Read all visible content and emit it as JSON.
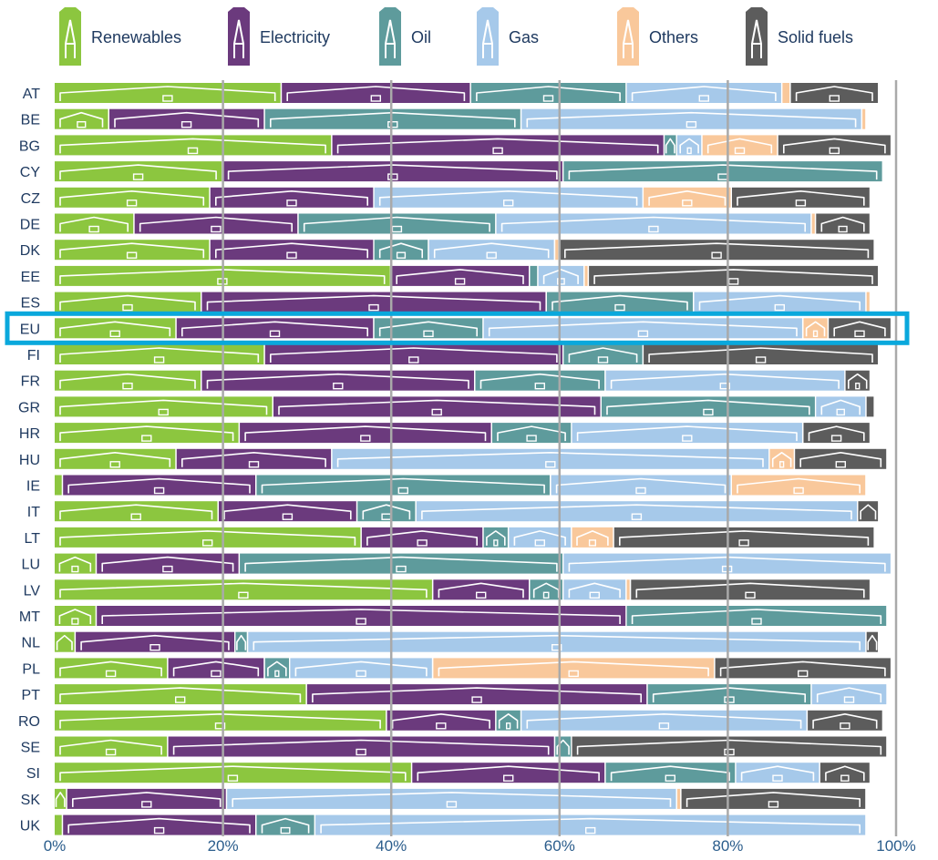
{
  "chart_data": {
    "type": "bar",
    "orientation": "horizontal",
    "stacked": true,
    "xlim": [
      0,
      100
    ],
    "grid": true,
    "legend_position": "top",
    "highlight_category": "EU",
    "highlight_color": "#0aa8dc",
    "x_ticks": [
      "0%",
      "20%",
      "40%",
      "60%",
      "80%",
      "100%"
    ],
    "x_tick_values": [
      0,
      20,
      40,
      60,
      80,
      100
    ],
    "categories": [
      "AT",
      "BE",
      "BG",
      "CY",
      "CZ",
      "DE",
      "DK",
      "EE",
      "ES",
      "EU",
      "FI",
      "FR",
      "GR",
      "HR",
      "HU",
      "IE",
      "IT",
      "LT",
      "LU",
      "LV",
      "MT",
      "NL",
      "PL",
      "PT",
      "RO",
      "SE",
      "SI",
      "SK",
      "UK"
    ],
    "series": [
      {
        "name": "Renewables",
        "color": "#8cc63f",
        "values": [
          27,
          6.5,
          33,
          20,
          18.5,
          9.5,
          18.5,
          40,
          17.5,
          14.5,
          25,
          17.5,
          26,
          22,
          14.5,
          1,
          19.5,
          36.5,
          5,
          45,
          5,
          2.5,
          13.5,
          30,
          39.5,
          13.5,
          42.5,
          1.5,
          1
        ]
      },
      {
        "name": "Electricity",
        "color": "#6b3a7d",
        "values": [
          22.5,
          18.5,
          39.5,
          40.5,
          19.5,
          19.5,
          19.5,
          16.5,
          41,
          23.5,
          35.5,
          32.5,
          39,
          30,
          18.5,
          23,
          16.5,
          14.5,
          17,
          11.5,
          63,
          19,
          11.5,
          40.5,
          13,
          46,
          23,
          19,
          23
        ]
      },
      {
        "name": "Oil",
        "color": "#5e9b9c",
        "values": [
          18.5,
          30.5,
          1.5,
          38,
          0,
          23.5,
          6.5,
          1,
          17.5,
          13,
          9.5,
          15.5,
          25.5,
          9.5,
          0,
          35,
          7,
          3,
          38.5,
          4,
          31,
          1.5,
          3,
          19.5,
          3,
          2,
          15.5,
          0,
          7
        ]
      },
      {
        "name": "Gas",
        "color": "#a6c9ea",
        "values": [
          18.5,
          40.5,
          3,
          0,
          32,
          37.5,
          15,
          5.5,
          20.5,
          38,
          0,
          28.5,
          6,
          27.5,
          52,
          21.5,
          52.5,
          7.5,
          39,
          7.5,
          0,
          73.5,
          17,
          9,
          34,
          0,
          10,
          53.5,
          65.5
        ]
      },
      {
        "name": "Others",
        "color": "#f9c89b",
        "values": [
          1,
          0.5,
          9,
          0,
          10.5,
          0.5,
          0.5,
          0.5,
          0.5,
          3,
          0,
          0,
          0,
          0,
          3,
          16,
          0,
          5,
          0,
          0.5,
          0,
          0,
          33.5,
          0,
          0,
          0,
          0,
          0.5,
          0
        ]
      },
      {
        "name": "Solid fuels",
        "color": "#5c5c5c",
        "values": [
          10.5,
          0,
          13.5,
          0,
          16.5,
          6.5,
          37.5,
          34.5,
          0,
          7.5,
          28,
          3,
          1,
          8,
          11,
          0,
          2.5,
          31,
          0,
          28.5,
          0,
          1.5,
          21,
          0,
          9,
          37.5,
          6,
          22,
          0
        ]
      }
    ]
  }
}
